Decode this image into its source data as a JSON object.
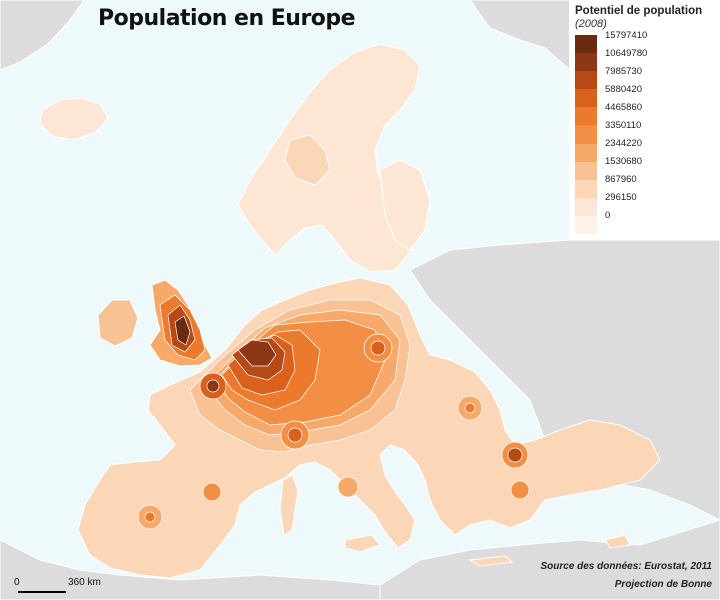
{
  "title": "Population en Europe",
  "legend": {
    "title": "Potentiel de population",
    "subtitle": "(2008)",
    "classes": [
      {
        "label": "15797410",
        "color": "#6b2a12"
      },
      {
        "label": "10649780",
        "color": "#8c3716"
      },
      {
        "label": "7985730",
        "color": "#b64a16"
      },
      {
        "label": "5880420",
        "color": "#d9601d"
      },
      {
        "label": "4465860",
        "color": "#ec7a2c"
      },
      {
        "label": "3350110",
        "color": "#f28f45"
      },
      {
        "label": "2344220",
        "color": "#f7a96a"
      },
      {
        "label": "1530680",
        "color": "#f9c294"
      },
      {
        "label": "867960",
        "color": "#fbd6b7"
      },
      {
        "label": "296150",
        "color": "#fde6d3"
      },
      {
        "label": "0",
        "color": "#fff2e8"
      }
    ]
  },
  "scale": {
    "zero": "0",
    "max": "360 km"
  },
  "source": "Source des données: Eurostat, 2011",
  "projection": "Projection de Bonne",
  "colors": {
    "sea": "#eef9fb",
    "non_europe_land": "#dcdcdc",
    "border": "#ffffff"
  }
}
